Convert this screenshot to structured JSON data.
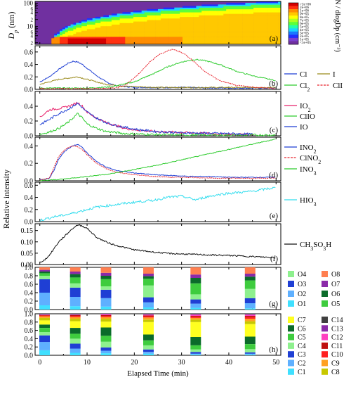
{
  "chart_data": [
    {
      "panel": "a",
      "type": "heatmap",
      "ylabel": "D_p (nm)",
      "yticks": [
        "2",
        "4",
        "6",
        "8",
        "10",
        "20",
        "40",
        "60",
        "80",
        "100"
      ],
      "ylim": [
        1.7,
        120
      ],
      "yscale": "log",
      "colorbar": {
        "label": "dN / dlogDp (cm⁻³)",
        "levels": [
          "<1e+05",
          "1e+05",
          "2e+05",
          "3e+05",
          "4e+05",
          "5e+05",
          "6e+05",
          "7e+05",
          "8e+05",
          "9e+05",
          "1e+06",
          "2e+06",
          ">2e+06"
        ],
        "colors": [
          "#7030a0",
          "#7a3fd0",
          "#2030ff",
          "#1a78ff",
          "#19d4ff",
          "#22ffa8",
          "#5cff3a",
          "#b0ff20",
          "#ffff00",
          "#ffc800",
          "#ff8c00",
          "#ff3010",
          "#d40000"
        ]
      },
      "xlim": [
        -1,
        51
      ],
      "letter": "(a)"
    },
    {
      "panel": "b",
      "type": "line",
      "letter": "(b)",
      "ylim": [
        0,
        0.7
      ],
      "yticks": [
        "0.0",
        "0.2",
        "0.4",
        "0.6"
      ],
      "series": [
        {
          "name": "Cl",
          "color": "#1f3fd4",
          "x": [
            0,
            2,
            4,
            6,
            7,
            8,
            9,
            10,
            12,
            14,
            16,
            20,
            25,
            30,
            40,
            50
          ],
          "y": [
            0.12,
            0.2,
            0.32,
            0.42,
            0.45,
            0.44,
            0.4,
            0.34,
            0.22,
            0.12,
            0.06,
            0.03,
            0.03,
            0.03,
            0.02,
            0.02
          ]
        },
        {
          "name": "I",
          "color": "#9a8a1a",
          "x": [
            0,
            2,
            4,
            6,
            8,
            10,
            12,
            14,
            18,
            25,
            35,
            50
          ],
          "y": [
            0.08,
            0.12,
            0.16,
            0.18,
            0.2,
            0.16,
            0.12,
            0.08,
            0.05,
            0.03,
            0.03,
            0.03
          ]
        },
        {
          "name": "Cl₂",
          "color": "#2ecc2e",
          "x": [
            0,
            10,
            15,
            20,
            24,
            27,
            30,
            33,
            35,
            38,
            42,
            46,
            50
          ],
          "y": [
            0.02,
            0.02,
            0.04,
            0.12,
            0.25,
            0.36,
            0.44,
            0.48,
            0.46,
            0.4,
            0.28,
            0.2,
            0.14
          ]
        },
        {
          "name": "ClI",
          "color": "#e8202a",
          "dash": true,
          "x": [
            0,
            10,
            16,
            18,
            21,
            23,
            25,
            27,
            28,
            29,
            31,
            33,
            35,
            38,
            42,
            46,
            50
          ],
          "y": [
            0.01,
            0.01,
            0.02,
            0.06,
            0.25,
            0.42,
            0.55,
            0.62,
            0.64,
            0.62,
            0.55,
            0.42,
            0.28,
            0.14,
            0.06,
            0.03,
            0.02
          ]
        }
      ]
    },
    {
      "panel": "c",
      "type": "line",
      "letter": "(c)",
      "ylim": [
        0,
        0.6
      ],
      "yticks": [
        "0.0",
        "0.2",
        "0.4"
      ],
      "series": [
        {
          "name": "IO₂",
          "color": "#e8206a",
          "x": [
            0,
            1,
            2,
            3,
            4,
            5,
            6,
            7,
            8,
            9,
            10,
            12,
            14,
            16,
            18,
            20,
            24,
            28,
            32,
            36,
            40,
            45
          ],
          "y": [
            0.25,
            0.3,
            0.35,
            0.36,
            0.37,
            0.38,
            0.4,
            0.42,
            0.45,
            0.4,
            0.32,
            0.24,
            0.18,
            0.14,
            0.1,
            0.08,
            0.06,
            0.05,
            0.04,
            0.03,
            0.02,
            0.02
          ]
        },
        {
          "name": "ClIO",
          "color": "#2ecc2e",
          "x": [
            0,
            2,
            4,
            6,
            7,
            8,
            9,
            10,
            12,
            14,
            18,
            22,
            30,
            40,
            50
          ],
          "y": [
            0.02,
            0.05,
            0.1,
            0.18,
            0.24,
            0.3,
            0.24,
            0.16,
            0.1,
            0.06,
            0.03,
            0.02,
            0.01,
            0.01,
            0.01
          ]
        },
        {
          "name": "IO",
          "color": "#1f3fd4",
          "x": [
            0,
            2,
            4,
            6,
            7,
            8,
            9,
            10,
            12,
            14,
            16,
            20,
            24,
            30,
            40,
            45
          ],
          "y": [
            0.15,
            0.22,
            0.3,
            0.36,
            0.4,
            0.44,
            0.38,
            0.32,
            0.24,
            0.18,
            0.14,
            0.09,
            0.06,
            0.04,
            0.03,
            0.02
          ]
        }
      ]
    },
    {
      "panel": "d",
      "type": "line",
      "letter": "(d)",
      "ylim": [
        0,
        0.5
      ],
      "yticks": [
        "0.0",
        "0.2",
        "0.4"
      ],
      "series": [
        {
          "name": "INO₂",
          "color": "#1f3fd4",
          "x": [
            0,
            2,
            3,
            4,
            5,
            6,
            7,
            8,
            9,
            10,
            12,
            14,
            16,
            20,
            24,
            28,
            32,
            36,
            40,
            45,
            50
          ],
          "y": [
            0.01,
            0.03,
            0.12,
            0.25,
            0.32,
            0.37,
            0.4,
            0.42,
            0.38,
            0.32,
            0.22,
            0.16,
            0.12,
            0.09,
            0.07,
            0.06,
            0.05,
            0.05,
            0.04,
            0.04,
            0.04
          ]
        },
        {
          "name": "ClNO₂",
          "color": "#e8202a",
          "dash": true,
          "x": [
            0,
            2,
            3,
            4,
            5,
            6,
            7,
            8,
            9,
            10,
            12,
            14,
            16,
            20,
            24,
            28,
            32,
            36,
            40,
            45,
            50
          ],
          "y": [
            0.01,
            0.03,
            0.15,
            0.28,
            0.34,
            0.38,
            0.4,
            0.39,
            0.36,
            0.3,
            0.2,
            0.14,
            0.1,
            0.07,
            0.05,
            0.04,
            0.04,
            0.03,
            0.03,
            0.03,
            0.03
          ]
        },
        {
          "name": "INO₃",
          "color": "#2ecc2e",
          "x": [
            0,
            5,
            10,
            15,
            20,
            25,
            30,
            35,
            40,
            45,
            50
          ],
          "y": [
            0.0,
            0.02,
            0.05,
            0.08,
            0.13,
            0.18,
            0.24,
            0.3,
            0.36,
            0.42,
            0.48
          ]
        }
      ]
    },
    {
      "panel": "e",
      "type": "line",
      "letter": "(e)",
      "ylim": [
        0,
        0.65
      ],
      "yticks": [
        "0.0",
        "0.2",
        "0.4",
        "0.6"
      ],
      "series": [
        {
          "name": "HIO₃",
          "color": "#33ddee",
          "x": [
            0,
            3,
            6,
            9,
            12,
            15,
            18,
            21,
            24,
            27,
            30,
            33,
            36,
            39,
            42,
            45,
            48,
            50
          ],
          "y": [
            0.02,
            0.08,
            0.12,
            0.18,
            0.24,
            0.27,
            0.3,
            0.33,
            0.35,
            0.4,
            0.42,
            0.36,
            0.42,
            0.46,
            0.48,
            0.5,
            0.54,
            0.56
          ]
        }
      ]
    },
    {
      "panel": "f",
      "type": "line",
      "letter": "(f)",
      "ylim": [
        0,
        0.18
      ],
      "yticks": [
        "0.00",
        "0.05",
        "0.10",
        "0.15"
      ],
      "series": [
        {
          "name": "CH₃SO₃H",
          "color": "#111111",
          "x": [
            0,
            1,
            2,
            3,
            4,
            5,
            6,
            7,
            8,
            9,
            10,
            11,
            12,
            14,
            16,
            18,
            20,
            24,
            28,
            32,
            36,
            40,
            45,
            50
          ],
          "y": [
            0.01,
            0.02,
            0.04,
            0.07,
            0.1,
            0.12,
            0.14,
            0.16,
            0.175,
            0.17,
            0.16,
            0.14,
            0.12,
            0.1,
            0.085,
            0.075,
            0.065,
            0.055,
            0.048,
            0.045,
            0.042,
            0.04,
            0.035,
            0.03
          ]
        }
      ]
    },
    {
      "panel": "g",
      "type": "bar",
      "stacked": true,
      "letter": "(g)",
      "ylim": [
        0,
        1.0
      ],
      "yticks": [
        "0.0",
        "0.2",
        "0.4",
        "0.6",
        "0.8",
        "1.0"
      ],
      "x": [
        1,
        7.5,
        14,
        23,
        33,
        44.5
      ],
      "series": [
        {
          "name": "O1",
          "color": "#40e0ff",
          "values": [
            0.1,
            0.08,
            0.07,
            0.05,
            0.04,
            0.03
          ]
        },
        {
          "name": "O2",
          "color": "#5fb0ff",
          "values": [
            0.3,
            0.22,
            0.2,
            0.12,
            0.1,
            0.12
          ]
        },
        {
          "name": "O3",
          "color": "#1f3fd4",
          "values": [
            0.32,
            0.22,
            0.2,
            0.12,
            0.1,
            0.12
          ]
        },
        {
          "name": "O4",
          "color": "#8ef08e",
          "values": [
            0.08,
            0.1,
            0.08,
            0.28,
            0.12,
            0.22
          ]
        },
        {
          "name": "O5",
          "color": "#3ecc3e",
          "values": [
            0.06,
            0.14,
            0.17,
            0.16,
            0.26,
            0.2
          ]
        },
        {
          "name": "O6",
          "color": "#0b6b2a",
          "values": [
            0.04,
            0.08,
            0.08,
            0.06,
            0.13,
            0.09
          ]
        },
        {
          "name": "O7",
          "color": "#8b2aa8",
          "values": [
            0.04,
            0.06,
            0.07,
            0.06,
            0.08,
            0.07
          ]
        },
        {
          "name": "O8",
          "color": "#ff7f50",
          "values": [
            0.06,
            0.1,
            0.13,
            0.15,
            0.17,
            0.15
          ]
        }
      ],
      "legend": [
        "O4",
        "O8",
        "O3",
        "O7",
        "O2",
        "O6",
        "O1",
        "O5"
      ]
    },
    {
      "panel": "h",
      "type": "bar",
      "stacked": true,
      "letter": "(h)",
      "ylim": [
        0,
        1.0
      ],
      "yticks": [
        "0.0",
        "0.2",
        "0.4",
        "0.6",
        "0.8",
        "1.0"
      ],
      "x": [
        1,
        7.5,
        14,
        23,
        33,
        44.5
      ],
      "series": [
        {
          "name": "C1",
          "color": "#40e0ff",
          "values": [
            0.12,
            0.06,
            0.05,
            0.04,
            0.02,
            0.02
          ]
        },
        {
          "name": "C2",
          "color": "#5fb0ff",
          "values": [
            0.2,
            0.1,
            0.06,
            0.04,
            0.02,
            0.02
          ]
        },
        {
          "name": "C3",
          "color": "#1f3fd4",
          "values": [
            0.16,
            0.12,
            0.08,
            0.06,
            0.04,
            0.03
          ]
        },
        {
          "name": "C4",
          "color": "#8ef08e",
          "values": [
            0.08,
            0.12,
            0.14,
            0.1,
            0.06,
            0.08
          ]
        },
        {
          "name": "C5",
          "color": "#3ecc3e",
          "values": [
            0.1,
            0.12,
            0.14,
            0.12,
            0.1,
            0.12
          ]
        },
        {
          "name": "C6",
          "color": "#0b6b2a",
          "values": [
            0.08,
            0.14,
            0.2,
            0.14,
            0.2,
            0.18
          ]
        },
        {
          "name": "C7",
          "color": "#ffff20",
          "values": [
            0.1,
            0.16,
            0.14,
            0.3,
            0.36,
            0.3
          ]
        },
        {
          "name": "C8",
          "color": "#c8c800",
          "values": [
            0.06,
            0.06,
            0.07,
            0.06,
            0.06,
            0.07
          ]
        },
        {
          "name": "C9",
          "color": "#ffa020",
          "values": [
            0.04,
            0.04,
            0.04,
            0.05,
            0.04,
            0.06
          ]
        },
        {
          "name": "C10",
          "color": "#ff2020",
          "values": [
            0.02,
            0.03,
            0.03,
            0.03,
            0.03,
            0.04
          ]
        },
        {
          "name": "C11",
          "color": "#c01010",
          "values": [
            0.01,
            0.02,
            0.02,
            0.02,
            0.02,
            0.03
          ]
        },
        {
          "name": "C12",
          "color": "#ff40c0",
          "values": [
            0.01,
            0.01,
            0.02,
            0.02,
            0.03,
            0.03
          ]
        },
        {
          "name": "C13",
          "color": "#8b2aa8",
          "values": [
            0.01,
            0.01,
            0.01,
            0.01,
            0.01,
            0.01
          ]
        },
        {
          "name": "C14",
          "color": "#404040",
          "values": [
            0.01,
            0.01,
            0.0,
            0.01,
            0.01,
            0.01
          ]
        }
      ],
      "legend": [
        "C7",
        "C14",
        "C6",
        "C13",
        "C5",
        "C12",
        "C4",
        "C11",
        "C3",
        "C10",
        "C2",
        "C9",
        "C1",
        "C8"
      ]
    }
  ],
  "shared": {
    "xlabel": "Elapsed Time (min)",
    "ylabel": "Relative intensity",
    "xticks": [
      "0",
      "10",
      "20",
      "30",
      "40",
      "50"
    ],
    "xlim": [
      -1,
      51
    ]
  }
}
